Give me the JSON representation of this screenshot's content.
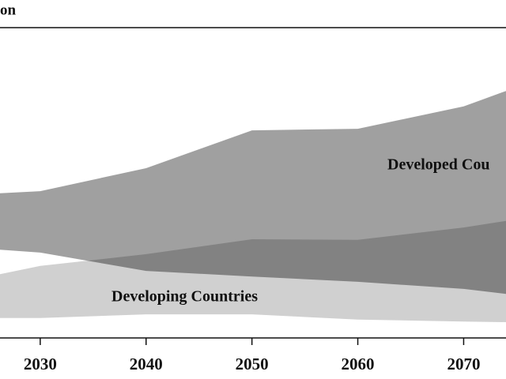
{
  "chart_data": {
    "type": "range-area",
    "title": "on",
    "x": [
      2026,
      2030,
      2040,
      2050,
      2060,
      2070,
      2074
    ],
    "xlim": [
      2026.2,
      2074
    ],
    "xticks": [
      2030,
      2040,
      2050,
      2060,
      2070
    ],
    "ylim": [
      0,
      100
    ],
    "series": [
      {
        "name": "Developing Countries",
        "color": "#d0d0d0",
        "low": [
          6.4,
          6.4,
          7.6,
          7.6,
          5.9,
          5.3,
          5.1
        ],
        "high": [
          20.4,
          23.2,
          27.0,
          31.8,
          31.6,
          35.6,
          37.7
        ]
      },
      {
        "name": "Developed Cou",
        "color": "#a0a0a0",
        "low": [
          28.5,
          27.5,
          21.6,
          19.8,
          18.1,
          15.8,
          14.2
        ],
        "high": [
          46.6,
          47.3,
          54.7,
          66.9,
          67.4,
          74.6,
          79.6
        ]
      }
    ]
  }
}
